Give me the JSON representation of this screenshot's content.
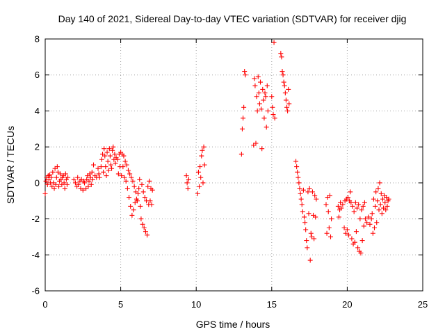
{
  "chart_data": {
    "type": "scatter",
    "title": "Day 140 of 2021, Sidereal Day-to-day VTEC variation (SDTVAR) for receiver djig",
    "xlabel": "GPS time / hours",
    "ylabel": "SDTVAR / TECUs",
    "xlim": [
      0,
      25
    ],
    "ylim": [
      -6,
      8
    ],
    "x_ticks": [
      "0",
      "5",
      "10",
      "15",
      "20",
      "25"
    ],
    "y_ticks": [
      "-6",
      "-4",
      "-2",
      "0",
      "2",
      "4",
      "6",
      "8"
    ],
    "grid": true,
    "marker": "+",
    "series_color": "#ff0000",
    "series": [
      {
        "name": "SDTVAR",
        "points": [
          [
            0.0,
            -0.6
          ],
          [
            0.05,
            0.1
          ],
          [
            0.1,
            0.3
          ],
          [
            0.15,
            -0.1
          ],
          [
            0.2,
            0.4
          ],
          [
            0.25,
            0.2
          ],
          [
            0.3,
            0.45
          ],
          [
            0.35,
            0.0
          ],
          [
            0.4,
            0.3
          ],
          [
            0.45,
            -0.2
          ],
          [
            0.5,
            0.6
          ],
          [
            0.55,
            0.0
          ],
          [
            0.6,
            -0.3
          ],
          [
            0.65,
            0.8
          ],
          [
            0.7,
            -0.1
          ],
          [
            0.75,
            0.3
          ],
          [
            0.8,
            0.9
          ],
          [
            0.85,
            0.6
          ],
          [
            0.9,
            -0.2
          ],
          [
            0.95,
            0.1
          ],
          [
            1.0,
            0.5
          ],
          [
            1.05,
            0.2
          ],
          [
            1.1,
            -0.1
          ],
          [
            1.15,
            0.3
          ],
          [
            1.2,
            0.4
          ],
          [
            1.25,
            0.0
          ],
          [
            1.3,
            -0.3
          ],
          [
            1.35,
            0.5
          ],
          [
            1.4,
            0.2
          ],
          [
            1.45,
            -0.1
          ],
          [
            1.5,
            0.3
          ],
          [
            1.9,
            0.2
          ],
          [
            2.0,
            0.0
          ],
          [
            2.1,
            -0.2
          ],
          [
            2.15,
            0.3
          ],
          [
            2.2,
            -0.1
          ],
          [
            2.3,
            0.1
          ],
          [
            2.35,
            -0.3
          ],
          [
            2.4,
            0.2
          ],
          [
            2.5,
            -0.4
          ],
          [
            2.55,
            0.1
          ],
          [
            2.6,
            0.0
          ],
          [
            2.7,
            -0.3
          ],
          [
            2.75,
            0.2
          ],
          [
            2.8,
            0.4
          ],
          [
            2.85,
            -0.2
          ],
          [
            2.9,
            0.1
          ],
          [
            2.95,
            0.5
          ],
          [
            3.0,
            0.3
          ],
          [
            3.05,
            -0.1
          ],
          [
            3.1,
            0.6
          ],
          [
            3.15,
            0.2
          ],
          [
            3.2,
            1.0
          ],
          [
            3.3,
            0.4
          ],
          [
            3.4,
            0.3
          ],
          [
            3.5,
            0.8
          ],
          [
            3.55,
            0.5
          ],
          [
            3.6,
            0.3
          ],
          [
            3.7,
            0.9
          ],
          [
            3.75,
            1.3
          ],
          [
            3.8,
            1.6
          ],
          [
            3.85,
            0.6
          ],
          [
            3.9,
            1.9
          ],
          [
            3.95,
            1.5
          ],
          [
            4.0,
            0.9
          ],
          [
            4.05,
            0.4
          ],
          [
            4.1,
            1.7
          ],
          [
            4.15,
            1.2
          ],
          [
            4.2,
            0.7
          ],
          [
            4.25,
            1.9
          ],
          [
            4.3,
            1.5
          ],
          [
            4.35,
            1.0
          ],
          [
            4.4,
            0.8
          ],
          [
            4.45,
            1.8
          ],
          [
            4.5,
            2.0
          ],
          [
            4.55,
            1.3
          ],
          [
            4.6,
            1.6
          ],
          [
            4.65,
            1.1
          ],
          [
            4.7,
            1.4
          ],
          [
            4.8,
            1.3
          ],
          [
            4.85,
            0.5
          ],
          [
            4.9,
            1.6
          ],
          [
            4.95,
            0.9
          ],
          [
            5.0,
            1.7
          ],
          [
            5.05,
            0.4
          ],
          [
            5.1,
            1.6
          ],
          [
            5.15,
            0.9
          ],
          [
            5.2,
            1.5
          ],
          [
            5.25,
            0.3
          ],
          [
            5.3,
            1.2
          ],
          [
            5.35,
            0.1
          ],
          [
            5.4,
            1.0
          ],
          [
            5.45,
            -0.3
          ],
          [
            5.5,
            0.7
          ],
          [
            5.55,
            -0.8
          ],
          [
            5.6,
            0.5
          ],
          [
            5.65,
            -1.3
          ],
          [
            5.7,
            0.3
          ],
          [
            5.75,
            -1.8
          ],
          [
            5.8,
            0.1
          ],
          [
            5.85,
            -1.5
          ],
          [
            5.9,
            -0.2
          ],
          [
            5.95,
            -1.1
          ],
          [
            6.0,
            -0.5
          ],
          [
            6.05,
            -0.9
          ],
          [
            6.1,
            -1.0
          ],
          [
            6.15,
            -0.6
          ],
          [
            6.2,
            -0.3
          ],
          [
            6.25,
            0.2
          ],
          [
            6.3,
            -1.3
          ],
          [
            6.35,
            -2.0
          ],
          [
            6.4,
            -0.1
          ],
          [
            6.45,
            -2.3
          ],
          [
            6.5,
            -0.5
          ],
          [
            6.55,
            -2.5
          ],
          [
            6.6,
            -0.8
          ],
          [
            6.65,
            -2.7
          ],
          [
            6.7,
            -1.0
          ],
          [
            6.75,
            -2.9
          ],
          [
            6.8,
            -0.2
          ],
          [
            6.85,
            -1.2
          ],
          [
            6.9,
            0.1
          ],
          [
            6.95,
            -1.0
          ],
          [
            7.0,
            -0.3
          ],
          [
            7.05,
            -1.2
          ],
          [
            7.1,
            -0.4
          ],
          [
            9.35,
            0.4
          ],
          [
            9.4,
            0.0
          ],
          [
            9.45,
            -0.3
          ],
          [
            9.5,
            0.2
          ],
          [
            10.1,
            -0.6
          ],
          [
            10.15,
            0.6
          ],
          [
            10.2,
            -0.2
          ],
          [
            10.25,
            0.9
          ],
          [
            10.3,
            0.3
          ],
          [
            10.35,
            1.5
          ],
          [
            10.4,
            1.8
          ],
          [
            10.45,
            0.0
          ],
          [
            10.5,
            2.0
          ],
          [
            10.55,
            1.0
          ],
          [
            13.0,
            1.6
          ],
          [
            13.05,
            3.0
          ],
          [
            13.1,
            3.6
          ],
          [
            13.15,
            4.2
          ],
          [
            13.2,
            6.2
          ],
          [
            13.25,
            6.0
          ],
          [
            13.8,
            2.1
          ],
          [
            13.85,
            5.8
          ],
          [
            13.9,
            5.4
          ],
          [
            13.95,
            2.2
          ],
          [
            14.0,
            4.8
          ],
          [
            14.05,
            4.0
          ],
          [
            14.1,
            5.9
          ],
          [
            14.15,
            5.0
          ],
          [
            14.2,
            4.4
          ],
          [
            14.25,
            5.6
          ],
          [
            14.3,
            4.1
          ],
          [
            14.35,
            1.9
          ],
          [
            14.4,
            5.2
          ],
          [
            14.45,
            4.6
          ],
          [
            14.5,
            3.6
          ],
          [
            14.55,
            5.0
          ],
          [
            14.6,
            4.8
          ],
          [
            14.65,
            3.1
          ],
          [
            14.7,
            5.4
          ],
          [
            14.75,
            4.0
          ],
          [
            15.0,
            4.8
          ],
          [
            15.05,
            4.2
          ],
          [
            15.1,
            3.8
          ],
          [
            15.15,
            7.8
          ],
          [
            15.2,
            3.6
          ],
          [
            15.6,
            7.2
          ],
          [
            15.65,
            7.0
          ],
          [
            15.7,
            6.2
          ],
          [
            15.75,
            6.0
          ],
          [
            15.8,
            5.6
          ],
          [
            15.85,
            5.4
          ],
          [
            15.9,
            5.0
          ],
          [
            15.95,
            4.6
          ],
          [
            16.0,
            4.2
          ],
          [
            16.05,
            4.0
          ],
          [
            16.1,
            5.2
          ],
          [
            16.15,
            4.4
          ],
          [
            16.6,
            1.2
          ],
          [
            16.65,
            0.9
          ],
          [
            16.7,
            0.6
          ],
          [
            16.75,
            0.3
          ],
          [
            16.8,
            0.0
          ],
          [
            16.85,
            -0.3
          ],
          [
            16.9,
            -0.6
          ],
          [
            16.95,
            -0.9
          ],
          [
            17.0,
            -1.2
          ],
          [
            17.05,
            -1.6
          ],
          [
            17.1,
            -0.4
          ],
          [
            17.15,
            -1.9
          ],
          [
            17.2,
            -2.2
          ],
          [
            17.25,
            -2.6
          ],
          [
            17.3,
            -3.2
          ],
          [
            17.35,
            -3.6
          ],
          [
            17.4,
            -0.5
          ],
          [
            17.45,
            -1.7
          ],
          [
            17.5,
            -0.3
          ],
          [
            17.55,
            -4.3
          ],
          [
            17.6,
            -2.8
          ],
          [
            17.65,
            -3.0
          ],
          [
            17.7,
            -0.5
          ],
          [
            17.75,
            -1.8
          ],
          [
            17.8,
            -3.1
          ],
          [
            17.85,
            -0.7
          ],
          [
            17.9,
            -1.9
          ],
          [
            17.95,
            -0.9
          ],
          [
            18.6,
            -1.2
          ],
          [
            18.65,
            -2.8
          ],
          [
            18.7,
            -0.8
          ],
          [
            18.75,
            -1.6
          ],
          [
            18.8,
            -2.5
          ],
          [
            18.85,
            -0.7
          ],
          [
            18.9,
            -3.0
          ],
          [
            18.95,
            -2.0
          ],
          [
            19.4,
            -1.3
          ],
          [
            19.45,
            -1.9
          ],
          [
            19.5,
            -1.5
          ],
          [
            19.55,
            -1.1
          ],
          [
            19.6,
            -1.4
          ],
          [
            19.7,
            -1.2
          ],
          [
            19.8,
            -2.5
          ],
          [
            19.85,
            -1.0
          ],
          [
            19.9,
            -2.8
          ],
          [
            19.95,
            -0.9
          ],
          [
            20.0,
            -2.6
          ],
          [
            20.05,
            -0.8
          ],
          [
            20.1,
            -2.9
          ],
          [
            20.15,
            -1.0
          ],
          [
            20.2,
            -0.5
          ],
          [
            20.25,
            -1.1
          ],
          [
            20.3,
            -3.1
          ],
          [
            20.35,
            -1.3
          ],
          [
            20.4,
            -3.4
          ],
          [
            20.45,
            -1.6
          ],
          [
            20.5,
            -3.3
          ],
          [
            20.55,
            -1.1
          ],
          [
            20.6,
            -2.7
          ],
          [
            20.65,
            -1.4
          ],
          [
            20.7,
            -3.6
          ],
          [
            20.75,
            -1.2
          ],
          [
            20.8,
            -3.8
          ],
          [
            20.85,
            -2.0
          ],
          [
            20.9,
            -3.9
          ],
          [
            20.95,
            -1.5
          ],
          [
            21.0,
            -3.2
          ],
          [
            21.05,
            -1.3
          ],
          [
            21.1,
            -2.4
          ],
          [
            21.15,
            -1.1
          ],
          [
            21.2,
            -2.0
          ],
          [
            21.3,
            -2.2
          ],
          [
            21.4,
            -1.9
          ],
          [
            21.5,
            -2.3
          ],
          [
            21.6,
            -2.0
          ],
          [
            21.65,
            -1.7
          ],
          [
            21.7,
            -2.8
          ],
          [
            21.75,
            -0.9
          ],
          [
            21.8,
            -2.5
          ],
          [
            21.85,
            -1.3
          ],
          [
            21.9,
            -0.5
          ],
          [
            21.95,
            -2.2
          ],
          [
            22.0,
            -1.0
          ],
          [
            22.05,
            -0.3
          ],
          [
            22.1,
            -1.5
          ],
          [
            22.15,
            0.0
          ],
          [
            22.2,
            -1.2
          ],
          [
            22.25,
            -0.6
          ],
          [
            22.3,
            -1.7
          ],
          [
            22.35,
            -0.9
          ],
          [
            22.4,
            -1.4
          ],
          [
            22.45,
            -0.7
          ],
          [
            22.5,
            -1.1
          ],
          [
            22.55,
            -1.5
          ],
          [
            22.6,
            -0.8
          ],
          [
            22.65,
            -1.3
          ],
          [
            22.7,
            -1.0
          ],
          [
            22.75,
            -0.9
          ]
        ]
      }
    ]
  }
}
